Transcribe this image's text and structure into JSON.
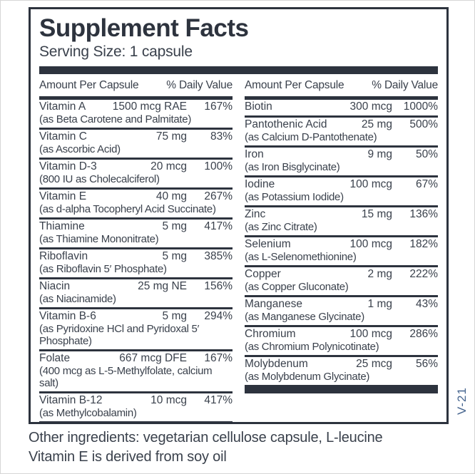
{
  "label": {
    "title": "Supplement Facts",
    "serving_size": "Serving Size: 1 capsule",
    "column_header": {
      "amount": "Amount Per Capsule",
      "daily_value": "% Daily Value"
    },
    "columns": {
      "left": [
        {
          "name": "Vitamin A",
          "amount": "1500 mcg RAE",
          "dv": "167%",
          "note": "(as Beta Carotene and Palmitate)"
        },
        {
          "name": "Vitamin C",
          "amount": "75 mg",
          "dv": "83%",
          "note": "(as Ascorbic Acid)"
        },
        {
          "name": "Vitamin D-3",
          "amount": "20 mcg",
          "dv": "100%",
          "note": "(800 IU as Cholecalciferol)"
        },
        {
          "name": "Vitamin E",
          "amount": "40 mg",
          "dv": "267%",
          "note": "(as d-alpha Tocopheryl Acid Succinate)"
        },
        {
          "name": "Thiamine",
          "amount": "5 mg",
          "dv": "417%",
          "note": "(as Thiamine Mononitrate)"
        },
        {
          "name": "Riboflavin",
          "amount": "5 mg",
          "dv": "385%",
          "note": "(as Riboflavin 5′ Phosphate)"
        },
        {
          "name": "Niacin",
          "amount": "25 mg NE",
          "dv": "156%",
          "note": "(as Niacinamide)"
        },
        {
          "name": "Vitamin B-6",
          "amount": "5 mg",
          "dv": "294%",
          "note": "(as Pyridoxine HCl and Pyridoxal 5′ Phosphate)"
        },
        {
          "name": "Folate",
          "amount": "667 mcg DFE",
          "dv": "167%",
          "note": "(400 mcg as L-5-Methylfolate, calcium salt)"
        },
        {
          "name": "Vitamin B-12",
          "amount": "10 mcg",
          "dv": "417%",
          "note": "(as Methylcobalamin)"
        }
      ],
      "right": [
        {
          "name": "Biotin",
          "amount": "300 mcg",
          "dv": "1000%",
          "note": ""
        },
        {
          "name": "Pantothenic Acid",
          "amount": "25 mg",
          "dv": "500%",
          "note": "(as Calcium D-Pantothenate)"
        },
        {
          "name": "Iron",
          "amount": "9 mg",
          "dv": "50%",
          "note": "(as Iron Bisglycinate)"
        },
        {
          "name": "Iodine",
          "amount": "100 mcg",
          "dv": "67%",
          "note": "(as Potassium Iodide)"
        },
        {
          "name": "Zinc",
          "amount": "15 mg",
          "dv": "136%",
          "note": "(as Zinc Citrate)"
        },
        {
          "name": "Selenium",
          "amount": "100 mcg",
          "dv": "182%",
          "note": "(as L-Selenomethionine)"
        },
        {
          "name": "Copper",
          "amount": "2 mg",
          "dv": "222%",
          "note": "(as Copper Gluconate)"
        },
        {
          "name": "Manganese",
          "amount": "1 mg",
          "dv": "43%",
          "note": "(as Manganese Glycinate)"
        },
        {
          "name": "Chromium",
          "amount": "100 mcg",
          "dv": "286%",
          "note": "(as Chromium Polynicotinate)"
        },
        {
          "name": "Molybdenum",
          "amount": "25 mcg",
          "dv": "56%",
          "note": "(as Molybdenum Glycinate)"
        }
      ]
    },
    "side_code": "V-21",
    "footer_lines": [
      "Other ingredients: vegetarian cellulose capsule, L-leucine",
      "Vitamin E is derived from soy oil"
    ],
    "colors": {
      "ink": "#3a414c",
      "bar": "#2d333e",
      "code_blue": "#45648e"
    }
  }
}
